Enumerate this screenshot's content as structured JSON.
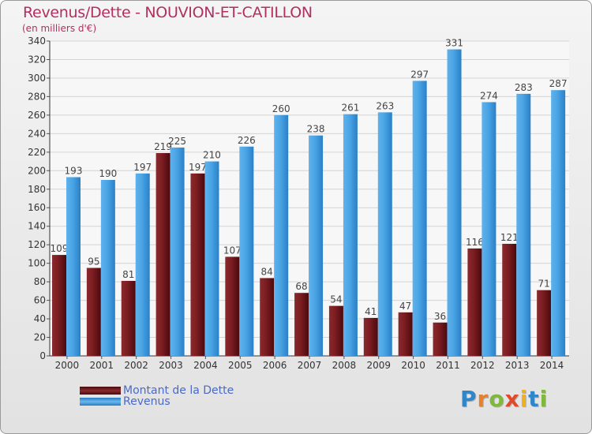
{
  "chart_data": {
    "type": "bar",
    "title": "Revenus/Dette - NOUVION-ET-CATILLON",
    "subtitle": "(en milliers d'€)",
    "xlabel": "",
    "ylabel": "",
    "ylim": [
      0,
      340
    ],
    "yticks": [
      0,
      20,
      40,
      60,
      80,
      100,
      120,
      140,
      160,
      180,
      200,
      220,
      240,
      260,
      280,
      300,
      320,
      340
    ],
    "grid": true,
    "legend_position": "bottom-left",
    "categories": [
      "2000",
      "2001",
      "2002",
      "2003",
      "2004",
      "2005",
      "2006",
      "2007",
      "2008",
      "2009",
      "2010",
      "2011",
      "2012",
      "2013",
      "2014"
    ],
    "series": [
      {
        "name": "Montant de la Dette",
        "color": "#6e1418",
        "values": [
          109,
          95,
          81,
          219,
          197,
          107,
          84,
          68,
          54,
          41,
          47,
          36,
          116,
          121,
          71
        ]
      },
      {
        "name": "Revenus",
        "color": "#3f98dc",
        "values": [
          193,
          190,
          197,
          225,
          210,
          226,
          260,
          238,
          261,
          263,
          297,
          331,
          274,
          283,
          287
        ]
      }
    ]
  },
  "legend": {
    "items": [
      {
        "label": "Montant de la Dette",
        "color": "#6e1418"
      },
      {
        "label": "Revenus",
        "color": "#3f98dc"
      }
    ]
  },
  "brand": {
    "letters": [
      {
        "char": "P",
        "color": "#2f86c8"
      },
      {
        "char": "r",
        "color": "#e8822a"
      },
      {
        "char": "o",
        "color": "#7fb83a"
      },
      {
        "char": "x",
        "color": "#e04a2a"
      },
      {
        "char": "i",
        "color": "#f0b020"
      },
      {
        "char": "t",
        "color": "#2f86c8"
      },
      {
        "char": "i",
        "color": "#7fb83a"
      }
    ]
  }
}
